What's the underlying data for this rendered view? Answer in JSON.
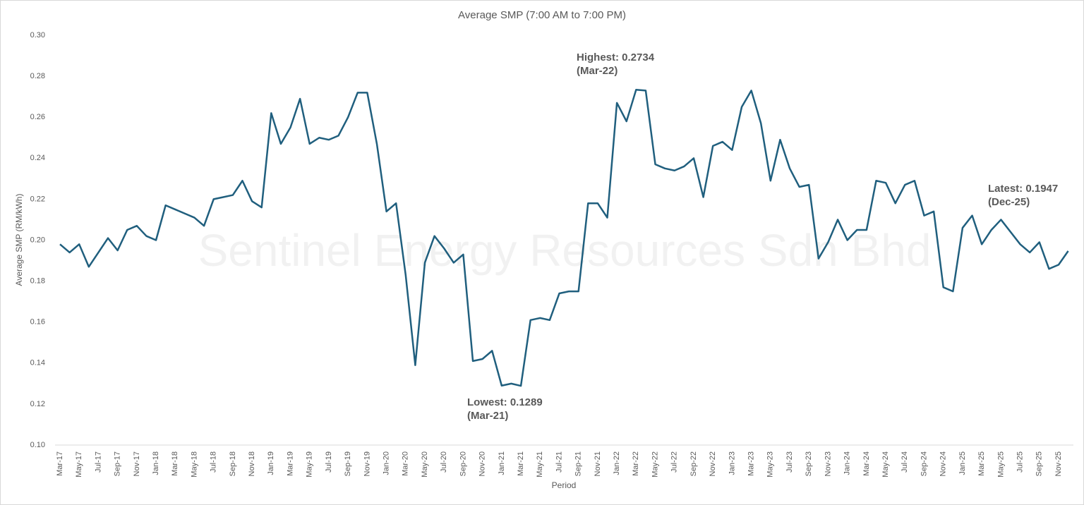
{
  "chart_data": {
    "type": "line",
    "title": "Average SMP (7:00 AM to 7:00 PM)",
    "x_label": "Period",
    "y_label": "Average SMP (RM/kWh)",
    "watermark": "Sentinel Energy Resources Sdn Bhd",
    "categories": [
      "Mar-17",
      null,
      "May-17",
      null,
      "Jul-17",
      null,
      "Sep-17",
      null,
      "Nov-17",
      null,
      "Jan-18",
      null,
      "Mar-18",
      null,
      "May-18",
      null,
      "Jul-18",
      null,
      "Sep-18",
      null,
      "Nov-18",
      null,
      "Jan-19",
      null,
      "Mar-19",
      null,
      "May-19",
      null,
      "Jul-19",
      null,
      "Sep-19",
      null,
      "Nov-19",
      null,
      "Jan-20",
      null,
      "Mar-20",
      null,
      "May-20",
      null,
      "Jul-20",
      null,
      "Sep-20",
      null,
      "Nov-20",
      null,
      "Jan-21",
      null,
      "Mar-21",
      null,
      "May-21",
      null,
      "Jul-21",
      null,
      "Sep-21",
      null,
      "Nov-21",
      null,
      "Jan-22",
      null,
      "Mar-22",
      null,
      "May-22",
      null,
      "Jul-22",
      null,
      "Sep-22",
      null,
      "Nov-22",
      null,
      "Jan-23",
      null,
      "Mar-23",
      null,
      "May-23",
      null,
      "Jul-23",
      null,
      "Sep-23",
      null,
      "Nov-23",
      null,
      "Jan-24",
      null,
      "Mar-24",
      null,
      "May-24",
      null,
      "Jul-24",
      null,
      "Sep-24",
      null,
      "Nov-24",
      null,
      "Jan-25",
      null,
      "Mar-25",
      null,
      "May-25",
      null,
      "Jul-25",
      null,
      "Sep-25",
      null,
      "Nov-25",
      null
    ],
    "values": [
      0.198,
      0.194,
      0.198,
      0.187,
      0.194,
      0.201,
      0.195,
      0.205,
      0.207,
      0.202,
      0.2,
      0.217,
      0.215,
      0.213,
      0.211,
      0.207,
      0.22,
      0.221,
      0.222,
      0.229,
      0.219,
      0.216,
      0.262,
      0.247,
      0.255,
      0.269,
      0.247,
      0.25,
      0.249,
      0.251,
      0.26,
      0.272,
      0.272,
      0.247,
      0.214,
      0.218,
      0.183,
      0.139,
      0.189,
      0.202,
      0.196,
      0.189,
      0.193,
      0.141,
      0.142,
      0.146,
      0.129,
      0.13,
      0.1289,
      0.161,
      0.162,
      0.161,
      0.174,
      0.175,
      0.175,
      0.218,
      0.218,
      0.211,
      0.267,
      0.258,
      0.2734,
      0.273,
      0.237,
      0.235,
      0.234,
      0.236,
      0.24,
      0.221,
      0.246,
      0.248,
      0.244,
      0.265,
      0.273,
      0.257,
      0.229,
      0.249,
      0.235,
      0.226,
      0.227,
      0.191,
      0.199,
      0.21,
      0.2,
      0.205,
      0.205,
      0.229,
      0.228,
      0.218,
      0.227,
      0.229,
      0.212,
      0.214,
      0.177,
      0.175,
      0.206,
      0.212,
      0.198,
      0.205,
      0.21,
      0.204,
      0.198,
      0.194,
      0.199,
      0.186,
      0.188,
      0.1947
    ],
    "color": "#205f7e",
    "ylim": [
      0.1,
      0.3
    ],
    "yticks": [
      {
        "value": 0.1,
        "label": "0.10"
      },
      0.12,
      0.14,
      0.16,
      0.18,
      {
        "value": 0.2,
        "label": "0.20"
      },
      0.22,
      0.24,
      0.26,
      0.28,
      {
        "value": 0.3,
        "label": "0.30"
      }
    ],
    "grid": false,
    "annotations": [
      {
        "lines": [
          "Highest: 0.2734",
          "(Mar-22)"
        ],
        "color": "#0e8a0e"
      },
      {
        "lines": [
          "Lowest:  0.1289",
          "(Mar-21)"
        ],
        "color": "#e8733a"
      },
      {
        "lines": [
          "Latest: 0.1947",
          "(Dec-25)"
        ],
        "color": "#205f7e"
      }
    ]
  }
}
